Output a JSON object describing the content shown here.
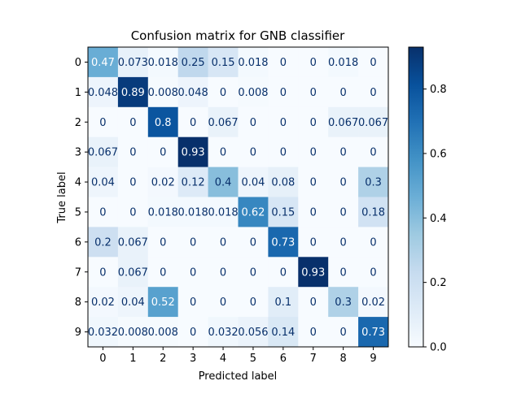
{
  "chart_data": {
    "type": "heatmap",
    "title": "Confusion matrix for GNB classifier",
    "xlabel": "Predicted label",
    "ylabel": "True label",
    "x_categories": [
      "0",
      "1",
      "2",
      "3",
      "4",
      "5",
      "6",
      "7",
      "8",
      "9"
    ],
    "y_categories": [
      "0",
      "1",
      "2",
      "3",
      "4",
      "5",
      "6",
      "7",
      "8",
      "9"
    ],
    "cell_labels": [
      [
        "0.47",
        "0.073",
        "0.018",
        "0.25",
        "0.15",
        "0.018",
        "0",
        "0",
        "0.018",
        "0"
      ],
      [
        "0.048",
        "0.89",
        "0.008",
        "0.048",
        "0",
        "0.008",
        "0",
        "0",
        "0",
        "0"
      ],
      [
        "0",
        "0",
        "0.8",
        "0",
        "0.067",
        "0",
        "0",
        "0",
        "0.067",
        "0.067"
      ],
      [
        "0.067",
        "0",
        "0",
        "0.93",
        "0",
        "0",
        "0",
        "0",
        "0",
        "0"
      ],
      [
        "0.04",
        "0",
        "0.02",
        "0.12",
        "0.4",
        "0.04",
        "0.08",
        "0",
        "0",
        "0.3"
      ],
      [
        "0",
        "0",
        "0.018",
        "0.018",
        "0.018",
        "0.62",
        "0.15",
        "0",
        "0",
        "0.18"
      ],
      [
        "0.2",
        "0.067",
        "0",
        "0",
        "0",
        "0",
        "0.73",
        "0",
        "0",
        "0"
      ],
      [
        "0",
        "0.067",
        "0",
        "0",
        "0",
        "0",
        "0",
        "0.93",
        "0",
        "0"
      ],
      [
        "0.02",
        "0.04",
        "0.52",
        "0",
        "0",
        "0",
        "0.1",
        "0",
        "0.3",
        "0.02"
      ],
      [
        "0.032",
        "0.008",
        "0.008",
        "0",
        "0.032",
        "0.056",
        "0.14",
        "0",
        "0",
        "0.73"
      ]
    ],
    "colormap": "Blues",
    "vmin": 0.0,
    "vmax": 0.93,
    "colorbar_ticks": [
      "0.0",
      "0.2",
      "0.4",
      "0.6",
      "0.8"
    ]
  }
}
